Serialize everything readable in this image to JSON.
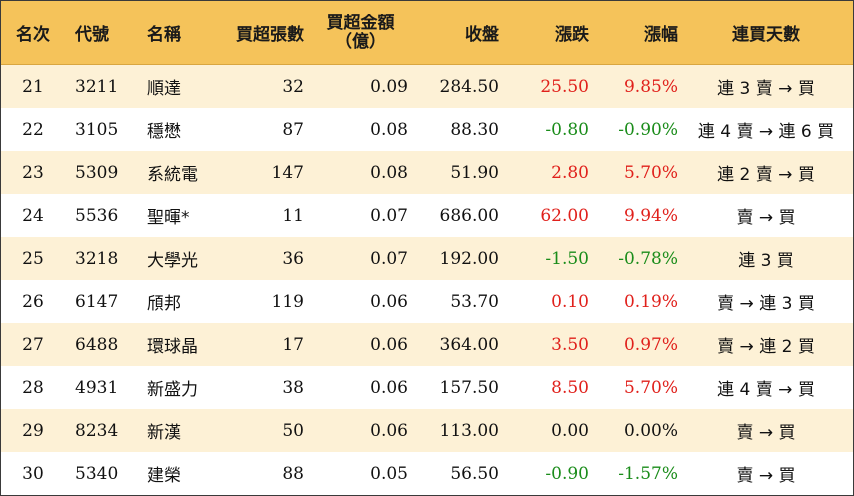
{
  "colors": {
    "header_bg": "#f5c35a",
    "stripe": "#fdf1d6",
    "up": "#e0201b",
    "down": "#1a8c1a"
  },
  "header": {
    "rank": "名次",
    "code": "代號",
    "name": "名稱",
    "net_buy_lots": "買超張數",
    "net_buy_amount_line1": "買超金額",
    "net_buy_amount_line2": "（億）",
    "close": "收盤",
    "change": "漲跌",
    "pct_change": "漲幅",
    "streak": "連買天數"
  },
  "rows": [
    {
      "rank": "21",
      "code": "3211",
      "name": "順達",
      "lots": "32",
      "amount": "0.09",
      "close": "284.50",
      "change": "25.50",
      "pct": "9.85%",
      "streak": "連 3 賣 → 買",
      "dir": "up"
    },
    {
      "rank": "22",
      "code": "3105",
      "name": "穩懋",
      "lots": "87",
      "amount": "0.08",
      "close": "88.30",
      "change": "-0.80",
      "pct": "-0.90%",
      "streak": "連 4 賣 → 連 6 買",
      "dir": "down"
    },
    {
      "rank": "23",
      "code": "5309",
      "name": "系統電",
      "lots": "147",
      "amount": "0.08",
      "close": "51.90",
      "change": "2.80",
      "pct": "5.70%",
      "streak": "連 2 賣 → 買",
      "dir": "up"
    },
    {
      "rank": "24",
      "code": "5536",
      "name": "聖暉*",
      "lots": "11",
      "amount": "0.07",
      "close": "686.00",
      "change": "62.00",
      "pct": "9.94%",
      "streak": "賣 → 買",
      "dir": "up"
    },
    {
      "rank": "25",
      "code": "3218",
      "name": "大學光",
      "lots": "36",
      "amount": "0.07",
      "close": "192.00",
      "change": "-1.50",
      "pct": "-0.78%",
      "streak": "連 3 買",
      "dir": "down"
    },
    {
      "rank": "26",
      "code": "6147",
      "name": "頎邦",
      "lots": "119",
      "amount": "0.06",
      "close": "53.70",
      "change": "0.10",
      "pct": "0.19%",
      "streak": "賣 → 連 3 買",
      "dir": "up"
    },
    {
      "rank": "27",
      "code": "6488",
      "name": "環球晶",
      "lots": "17",
      "amount": "0.06",
      "close": "364.00",
      "change": "3.50",
      "pct": "0.97%",
      "streak": "賣 → 連 2 買",
      "dir": "up"
    },
    {
      "rank": "28",
      "code": "4931",
      "name": "新盛力",
      "lots": "38",
      "amount": "0.06",
      "close": "157.50",
      "change": "8.50",
      "pct": "5.70%",
      "streak": "連 4 賣 → 買",
      "dir": "up"
    },
    {
      "rank": "29",
      "code": "8234",
      "name": "新漢",
      "lots": "50",
      "amount": "0.06",
      "close": "113.00",
      "change": "0.00",
      "pct": "0.00%",
      "streak": "賣 → 買",
      "dir": "flat"
    },
    {
      "rank": "30",
      "code": "5340",
      "name": "建榮",
      "lots": "88",
      "amount": "0.05",
      "close": "56.50",
      "change": "-0.90",
      "pct": "-1.57%",
      "streak": "賣 → 買",
      "dir": "down"
    }
  ]
}
